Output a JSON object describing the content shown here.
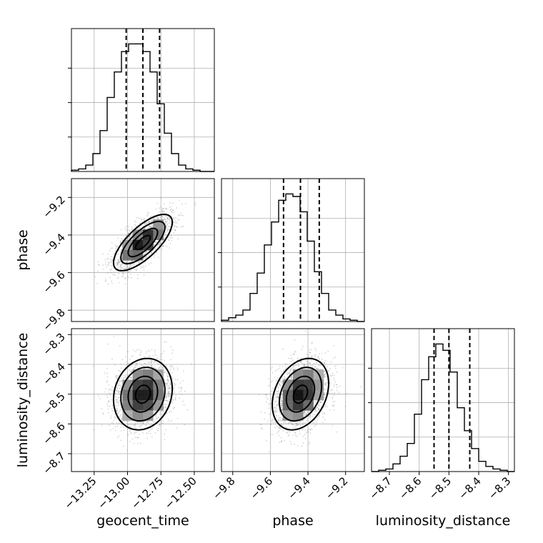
{
  "chart_data": {
    "type": "corner",
    "grid": true,
    "parameters": [
      {
        "name": "geocent_time",
        "label": "geocent_time",
        "range": [
          -13.42,
          -12.35
        ],
        "ticks": [
          -13.25,
          -13.0,
          -12.75,
          -12.5
        ],
        "tick_labels": [
          "−13.25",
          "−13.00",
          "−12.75",
          "−12.50"
        ],
        "mean": -12.885,
        "std": 0.11,
        "quantiles": [
          -13.01,
          -12.885,
          -12.76
        ],
        "hist_edges_step": 0.0535,
        "hist_counts": [
          1,
          2,
          5,
          14,
          32,
          58,
          78,
          94,
          100,
          100,
          94,
          78,
          53,
          30,
          14,
          5,
          2,
          1,
          0,
          0
        ],
        "hist_ymax": 112
      },
      {
        "name": "phase",
        "label": "phase",
        "range": [
          -9.86,
          -9.1
        ],
        "ticks": [
          -9.8,
          -9.6,
          -9.4,
          -9.2
        ],
        "tick_labels": [
          "−9.8",
          "−9.6",
          "−9.4",
          "−9.2"
        ],
        "mean": -9.44,
        "std": 0.075,
        "quantiles": [
          -9.53,
          -9.44,
          -9.34
        ],
        "hist_edges_step": 0.038,
        "hist_counts": [
          1,
          3,
          5,
          9,
          22,
          38,
          60,
          78,
          95,
          100,
          98,
          86,
          63,
          39,
          22,
          9,
          5,
          2,
          1,
          0
        ],
        "hist_ymax": 112
      },
      {
        "name": "luminosity_distance",
        "label": "luminosity_distance",
        "range": [
          -8.76,
          -8.28
        ],
        "ticks": [
          -8.7,
          -8.6,
          -8.5,
          -8.4,
          -8.3
        ],
        "tick_labels": [
          "−8.7",
          "−8.6",
          "−8.5",
          "−8.4",
          "−8.3"
        ],
        "mean": -8.5,
        "std": 0.06,
        "quantiles": [
          -8.55,
          -8.5,
          -8.43
        ],
        "hist_edges_step": 0.024,
        "hist_counts": [
          0,
          1,
          2,
          6,
          12,
          22,
          45,
          72,
          90,
          100,
          95,
          78,
          50,
          32,
          18,
          8,
          4,
          2,
          1,
          0
        ],
        "hist_ymax": 112
      }
    ],
    "correlations": [
      {
        "x": "geocent_time",
        "y": "phase",
        "rho": 0.72
      },
      {
        "x": "geocent_time",
        "y": "luminosity_distance",
        "rho": 0.15
      },
      {
        "x": "phase",
        "y": "luminosity_distance",
        "rho": 0.3
      }
    ],
    "sample_count": 3500,
    "contour_levels_sigma": [
      0.5,
      1.0,
      1.5,
      2.0
    ]
  },
  "colors": {
    "points": "#8a8a8a",
    "lines": "#000000",
    "grid": "#b0b0b0",
    "density_dark": "#000000",
    "density_light": "#ffffff"
  }
}
